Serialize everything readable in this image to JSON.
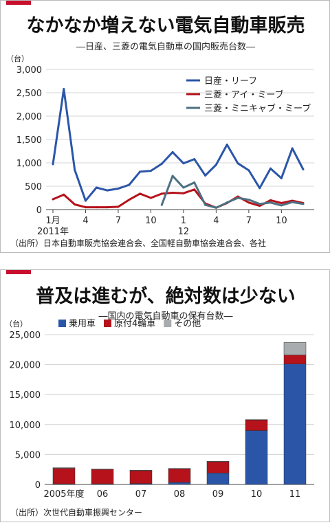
{
  "colors": {
    "accent": "#c8102e",
    "blue": "#2b56a8",
    "red": "#b5121b",
    "teal": "#4d7082",
    "gray": "#a8acae",
    "grid": "#c9c9c9"
  },
  "panel1": {
    "title": "なかなか増えない電気自動車販売",
    "subtitle": "―日産、三菱の電気自動車の国内販売台数―",
    "source": "（出所）日本自動車販売協会連合会、全国軽自動車協会連合会、各社"
  },
  "panel2": {
    "title": "普及は進むが、絶対数は少ない",
    "subtitle": "―国内の電気自動車の保有台数―",
    "source": "（出所）次世代自動車振興センター"
  },
  "chart_data": [
    {
      "type": "line",
      "unit": "（台）",
      "ylim": [
        0,
        3000
      ],
      "yticks": [
        "0",
        "500",
        "1,000",
        "1,500",
        "2,000",
        "2,500",
        "3,000"
      ],
      "x": [
        "2011-01",
        "2011-02",
        "2011-03",
        "2011-04",
        "2011-05",
        "2011-06",
        "2011-07",
        "2011-08",
        "2011-09",
        "2011-10",
        "2011-11",
        "2011-12",
        "2012-01",
        "2012-02",
        "2012-03",
        "2012-04",
        "2012-05",
        "2012-06",
        "2012-07",
        "2012-08",
        "2012-09",
        "2012-10",
        "2012-11",
        "2012-12"
      ],
      "xticks": [
        {
          "x": "2011-01",
          "label": "1月",
          "label2": "2011年"
        },
        {
          "x": "2011-04",
          "label": "4"
        },
        {
          "x": "2011-07",
          "label": "7"
        },
        {
          "x": "2011-10",
          "label": "10"
        },
        {
          "x": "2012-01",
          "label": "1",
          "label2": "12"
        },
        {
          "x": "2012-04",
          "label": "4"
        },
        {
          "x": "2012-07",
          "label": "7"
        },
        {
          "x": "2012-10",
          "label": "10"
        }
      ],
      "series": [
        {
          "name": "日産・リーフ",
          "color": "#2b56a8",
          "values": [
            970,
            2580,
            850,
            190,
            470,
            410,
            450,
            530,
            810,
            830,
            980,
            1230,
            990,
            1080,
            730,
            960,
            1390,
            990,
            840,
            460,
            880,
            670,
            1310,
            860
          ]
        },
        {
          "name": "三菱・アイ・ミーブ",
          "color": "#b5121b",
          "values": [
            220,
            320,
            110,
            50,
            50,
            50,
            60,
            210,
            340,
            250,
            340,
            360,
            350,
            430,
            130,
            40,
            140,
            280,
            150,
            80,
            200,
            140,
            190,
            140
          ]
        },
        {
          "name": "三菱・ミニキャブ・ミーブ",
          "color": "#4d7082",
          "values": [
            null,
            null,
            null,
            null,
            null,
            null,
            null,
            null,
            null,
            null,
            100,
            720,
            470,
            580,
            100,
            40,
            150,
            250,
            210,
            120,
            150,
            90,
            160,
            120
          ]
        }
      ],
      "legend": "top-right"
    },
    {
      "type": "bar",
      "stacked": true,
      "unit": "（台）",
      "ylim": [
        0,
        25000
      ],
      "yticks": [
        "0",
        "5,000",
        "10,000",
        "15,000",
        "20,000",
        "25,000"
      ],
      "categories": [
        "2005年度",
        "06",
        "07",
        "08",
        "09",
        "10",
        "11"
      ],
      "series": [
        {
          "name": "乗用車",
          "color": "#2b56a8",
          "values": [
            100,
            100,
            150,
            350,
            1900,
            9000,
            20100
          ]
        },
        {
          "name": "原付4輪車",
          "color": "#b5121b",
          "values": [
            2600,
            2400,
            2150,
            2250,
            1900,
            1750,
            1500
          ]
        },
        {
          "name": "その他",
          "color": "#a8acae",
          "values": [
            100,
            80,
            80,
            80,
            80,
            80,
            2100
          ]
        }
      ],
      "legend": "top-left"
    }
  ]
}
